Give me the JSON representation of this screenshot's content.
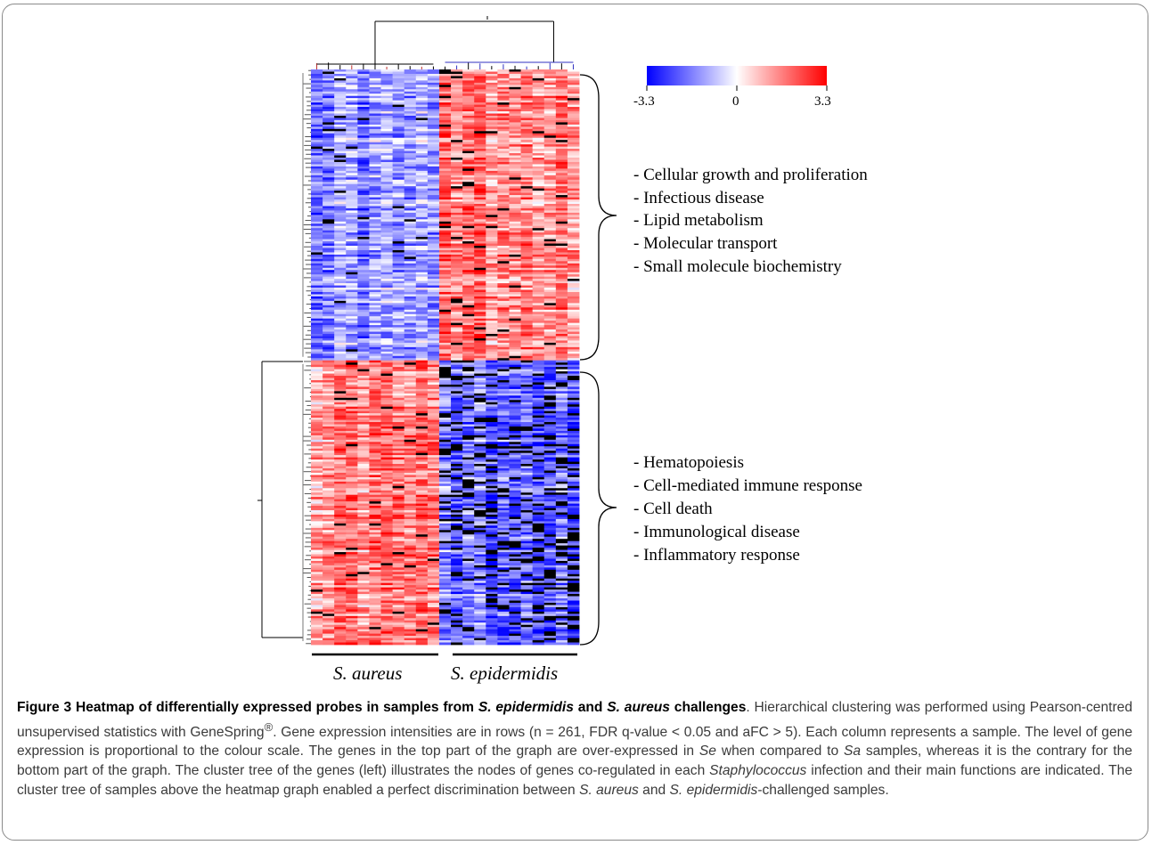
{
  "chart_data": {
    "type": "heatmap",
    "title": "",
    "rows": 261,
    "columns": 23,
    "color_scale": {
      "min": -3.3,
      "mid": 0,
      "max": 3.3,
      "low_color": "#0000ff",
      "mid_color": "#ffffff",
      "high_color": "#ff0000",
      "missing_color": "#000000"
    },
    "scale_ticks": [
      "-3.3",
      "0",
      "3.3"
    ],
    "column_groups": [
      {
        "label": "S. aureus",
        "columns": 11
      },
      {
        "label": "S. epidermidis",
        "columns": 12
      }
    ],
    "row_clusters": [
      {
        "name": "top",
        "rows": 132,
        "sa_level": -1.4,
        "se_level": 1.7,
        "missing_fraction_se": 0.05,
        "functions": [
          "- Cellular growth and proliferation",
          "- Infectious disease",
          "- Lipid metabolism",
          "- Molecular transport",
          "- Small molecule biochemistry"
        ]
      },
      {
        "name": "bottom",
        "rows": 129,
        "sa_level": 1.6,
        "se_level": -1.8,
        "missing_fraction_se": 0.2,
        "functions": [
          "- Hematopoiesis",
          "- Cell-mediated immune response",
          "- Cell death",
          "- Immunological disease",
          "- Inflammatory response"
        ]
      }
    ]
  },
  "caption": {
    "lead_1": "Figure 3 Heatmap of differentially expressed probes in samples from ",
    "lead_se": "S. epidermidis",
    "lead_2": " and ",
    "lead_sa": "S. aureus",
    "lead_3": " challenges",
    "t1": ". Hierarchical clustering was performed using Pearson-centred unsupervised statistics with GeneSpring",
    "reg": "®",
    "t2": ". Gene expression intensities are in rows (n = 261, FDR q-value < 0.05 and aFC > 5). Each column represents a sample. The level of gene expression is proportional to the colour scale. The genes in the top part of the graph are over-expressed in ",
    "se_abbr": "Se",
    "t3": " when compared to ",
    "sa_abbr": "Sa",
    "t4": " samples, whereas it is the contrary for the bottom part of the graph. The cluster tree of the genes (left) illustrates the nodes of genes co-regulated in each ",
    "staph": "Staphylococcus",
    "t5": " infection and their main functions are indicated. The cluster tree of samples above the heatmap graph enabled a perfect discrimination between ",
    "sa_full": "S. aureus",
    "t6": " and ",
    "se_full": "S. epidermidis",
    "t7": "-challenged samples."
  }
}
